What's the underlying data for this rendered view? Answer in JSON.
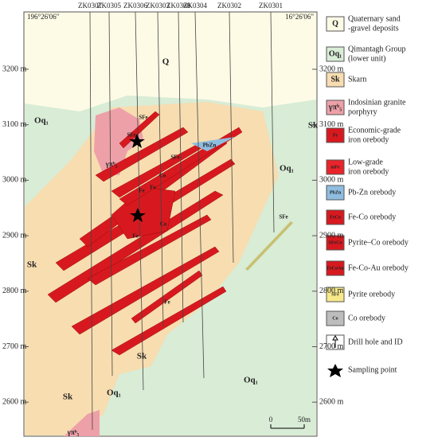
{
  "header": {
    "coord_left": "196°26'06\"",
    "coord_right": "16°26'06\""
  },
  "drill_holes": [
    "ZK0307",
    "ZK0305",
    "ZK0306",
    "ZK0303",
    "ZK0308",
    "ZK0304",
    "ZK0302",
    "ZK0301"
  ],
  "elevations": [
    "3200 m",
    "3100 m",
    "3000 m",
    "2900 m",
    "2800 m",
    "2700 m",
    "2600 m"
  ],
  "map_labels": {
    "units": [
      "Q",
      "Oq₁",
      "Oq₁",
      "Oq₁",
      "Oq₁",
      "Sk",
      "Sk",
      "Sk",
      "Sk",
      "γπᵇ₅",
      "γπᵇ₅"
    ],
    "orebodies": [
      "SFe",
      "SFe",
      "SFe",
      "SFe",
      "PbZn",
      "Co",
      "Co",
      "Fe",
      "Fe",
      "Fe",
      "Fe"
    ]
  },
  "legend": [
    {
      "symbol": "Q",
      "lines": [
        "Quaternary sand",
        "-gravel deposits"
      ]
    },
    {
      "symbol": "Oq₁",
      "lines": [
        "Qimantagh Group",
        "(lower unit)"
      ]
    },
    {
      "symbol": "Sk",
      "lines": [
        "Skarn"
      ]
    },
    {
      "symbol": "γπᵇ₅",
      "lines": [
        "Indosinian granite",
        "porphyry"
      ]
    },
    {
      "symbol": "Fe",
      "lines": [
        "Economic-grade",
        "iron orebody"
      ]
    },
    {
      "symbol": "mFe",
      "lines": [
        "Low-grade",
        "iron orebody"
      ]
    },
    {
      "symbol": "PbZn",
      "lines": [
        "Pb-Zn orebody"
      ]
    },
    {
      "symbol": "FeCo",
      "lines": [
        "Fe-Co orebody"
      ]
    },
    {
      "symbol": "SFeCo",
      "lines": [
        "Pyrite–Co orebody"
      ]
    },
    {
      "symbol": "FeCoAu",
      "lines": [
        "Fe-Co-Au orebody"
      ]
    },
    {
      "symbol": "SFe",
      "lines": [
        "Pyrite orebody"
      ]
    },
    {
      "symbol": "Co",
      "lines": [
        "Co orebody"
      ]
    },
    {
      "lines": [
        "Drill hole and ID"
      ]
    },
    {
      "lines": [
        "Sampling point"
      ]
    }
  ],
  "scale": {
    "start": "0",
    "end": "50m"
  }
}
